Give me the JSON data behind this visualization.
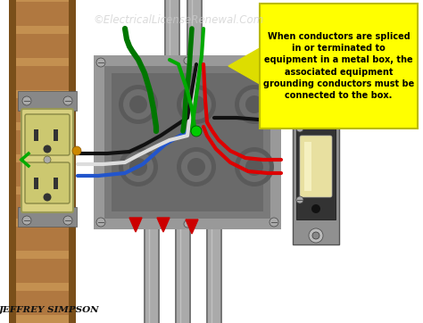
{
  "watermark": "©ElectricalLicenseRenewal.Com",
  "author": "Jeffrey Simpson",
  "bg_color": "#ffffff",
  "annotation_text": "When conductors are spliced\nin or terminated to\nequipment in a metal box, the\nassociated equipment\ngrounding conductors must be\nconnected to the box.",
  "annotation_bg": "#ffff00",
  "annotation_border": "#cccc00",
  "wood_color": "#b07840",
  "wood_dark": "#7a4f1a",
  "wood_light": "#c49050",
  "metal_box_color": "#909090",
  "metal_box_inner": "#7a7a7a",
  "conduit_color": "#aaaaaa",
  "conduit_dark": "#777777",
  "outlet_body": "#d8d080",
  "outlet_dark": "#b8b055",
  "switch_bracket": "#909090",
  "switch_body": "#333333",
  "switch_toggle": "#e8e0a0",
  "wire_red": "#dd0000",
  "wire_black": "#111111",
  "wire_white": "#dddddd",
  "wire_green": "#007700",
  "wire_blue": "#2255cc",
  "wire_green2": "#00aa00",
  "arrow_red": "#cc0000",
  "arrow_yellow": "#dddd00"
}
